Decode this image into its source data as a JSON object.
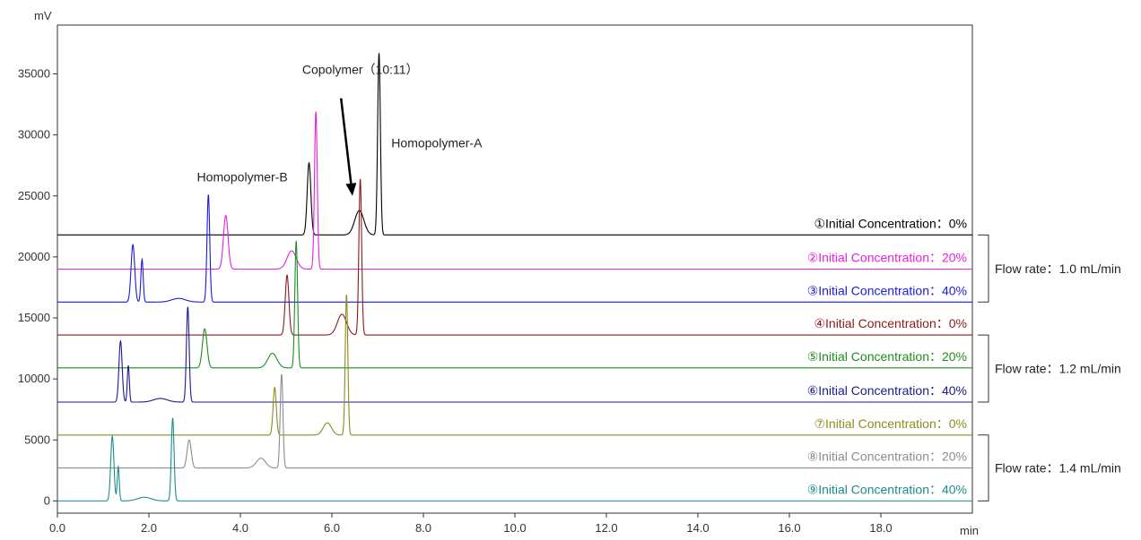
{
  "chart_data": {
    "type": "line",
    "title": "",
    "xlabel": "min",
    "ylabel": "mV",
    "xlim": [
      0,
      20
    ],
    "ylim": [
      -1000,
      39000
    ],
    "x_ticks": [
      "0.0",
      "2.0",
      "4.0",
      "6.0",
      "8.0",
      "10.0",
      "12.0",
      "14.0",
      "16.0",
      "18.0"
    ],
    "x_tick_values": [
      0,
      2,
      4,
      6,
      8,
      10,
      12,
      14,
      16,
      18
    ],
    "y_ticks": [
      "0",
      "5000",
      "10000",
      "15000",
      "20000",
      "25000",
      "30000",
      "35000"
    ],
    "y_tick_values": [
      0,
      5000,
      10000,
      15000,
      20000,
      25000,
      30000,
      35000
    ],
    "grid": false,
    "series": [
      {
        "name": "①Initial Concentration：0%",
        "color": "#000000",
        "baseline": 21800,
        "peaks": [
          {
            "t": 5.5,
            "h": 5900,
            "w": 0.04
          },
          {
            "t": 6.6,
            "h": 2000,
            "w": 0.1
          },
          {
            "t": 7.03,
            "h": 14900,
            "w": 0.03
          }
        ]
      },
      {
        "name": "②Initial Concentration：20%",
        "color": "#e81ee0",
        "baseline": 19000,
        "peaks": [
          {
            "t": 3.68,
            "h": 4400,
            "w": 0.05
          },
          {
            "t": 5.12,
            "h": 1500,
            "w": 0.1
          },
          {
            "t": 5.65,
            "h": 12900,
            "w": 0.03
          }
        ]
      },
      {
        "name": "③Initial Concentration：40%",
        "color": "#1a1adc",
        "baseline": 16300,
        "peaks": [
          {
            "t": 1.65,
            "h": 4700,
            "w": 0.04
          },
          {
            "t": 1.85,
            "h": 3500,
            "w": 0.025
          },
          {
            "t": 2.65,
            "h": 300,
            "w": 0.15
          },
          {
            "t": 3.3,
            "h": 8800,
            "w": 0.03
          }
        ]
      },
      {
        "name": "④Initial Concentration：0%",
        "color": "#8b1a1a",
        "baseline": 13600,
        "peaks": [
          {
            "t": 5.02,
            "h": 4900,
            "w": 0.04
          },
          {
            "t": 6.22,
            "h": 1700,
            "w": 0.1
          },
          {
            "t": 6.62,
            "h": 12800,
            "w": 0.03
          }
        ]
      },
      {
        "name": "⑤Initial Concentration：20%",
        "color": "#1e8c1e",
        "baseline": 10900,
        "peaks": [
          {
            "t": 3.22,
            "h": 3200,
            "w": 0.05
          },
          {
            "t": 4.7,
            "h": 1200,
            "w": 0.1
          },
          {
            "t": 5.22,
            "h": 10400,
            "w": 0.03
          }
        ]
      },
      {
        "name": "⑥Initial Concentration：40%",
        "color": "#1a1a8c",
        "baseline": 8100,
        "peaks": [
          {
            "t": 1.38,
            "h": 5000,
            "w": 0.035
          },
          {
            "t": 1.55,
            "h": 3000,
            "w": 0.022
          },
          {
            "t": 2.25,
            "h": 300,
            "w": 0.15
          },
          {
            "t": 2.85,
            "h": 7800,
            "w": 0.03
          }
        ]
      },
      {
        "name": "⑦Initial Concentration：0%",
        "color": "#8c8c1a",
        "baseline": 5400,
        "peaks": [
          {
            "t": 4.75,
            "h": 3900,
            "w": 0.035
          },
          {
            "t": 5.9,
            "h": 1000,
            "w": 0.09
          },
          {
            "t": 6.32,
            "h": 11500,
            "w": 0.028
          }
        ]
      },
      {
        "name": "⑧Initial Concentration：20%",
        "color": "#8c8c8c",
        "baseline": 2700,
        "peaks": [
          {
            "t": 2.88,
            "h": 2300,
            "w": 0.045
          },
          {
            "t": 4.45,
            "h": 800,
            "w": 0.1
          },
          {
            "t": 4.9,
            "h": 7700,
            "w": 0.03
          }
        ]
      },
      {
        "name": "⑨Initial Concentration：40%",
        "color": "#1a8c8c",
        "baseline": 0,
        "peaks": [
          {
            "t": 1.2,
            "h": 5300,
            "w": 0.035
          },
          {
            "t": 1.33,
            "h": 2800,
            "w": 0.022
          },
          {
            "t": 1.9,
            "h": 300,
            "w": 0.15
          },
          {
            "t": 2.52,
            "h": 6800,
            "w": 0.03
          }
        ]
      }
    ],
    "annotations": [
      {
        "text": "Copolymer（10:11）",
        "x": 5.35,
        "y": 35000
      },
      {
        "text": "Homopolymer-A",
        "x": 7.3,
        "y": 29000
      },
      {
        "text": "Homopolymer-B",
        "x": 3.05,
        "y": 26200
      }
    ],
    "arrow": {
      "from": [
        6.2,
        33000
      ],
      "to": [
        6.45,
        25000
      ]
    },
    "groups": [
      {
        "label": "Flow rate：1.0 mL/min",
        "series": [
          0,
          1,
          2
        ]
      },
      {
        "label": "Flow rate：1.2 mL/min",
        "series": [
          3,
          4,
          5
        ]
      },
      {
        "label": "Flow rate：1.4 mL/min",
        "series": [
          6,
          7,
          8
        ]
      }
    ]
  }
}
